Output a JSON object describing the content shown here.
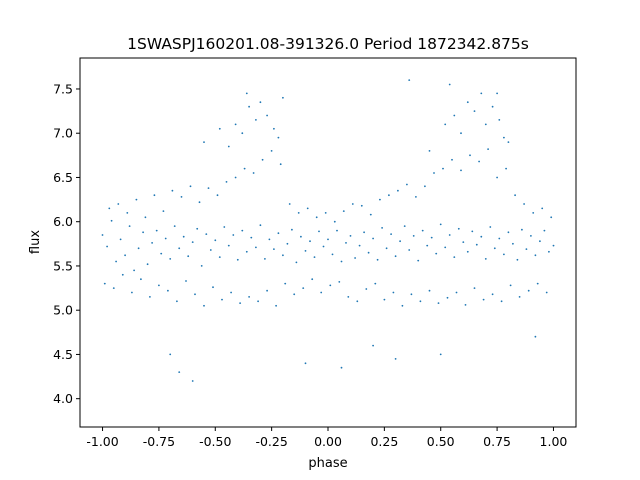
{
  "chart_data": {
    "type": "scatter",
    "title": "1SWASPJ160201.08-391326.0 Period 1872342.875s",
    "xlabel": "phase",
    "ylabel": "flux",
    "xlim": [
      -1.1,
      1.1
    ],
    "ylim": [
      3.68,
      7.85
    ],
    "grid": false,
    "legend": "none",
    "point_color": "#1f77b4",
    "xticks": [
      "-1.00",
      "-0.75",
      "-0.50",
      "-0.25",
      "0.00",
      "0.25",
      "0.50",
      "0.75",
      "1.00"
    ],
    "xtick_values": [
      -1.0,
      -0.75,
      -0.5,
      -0.25,
      0.0,
      0.25,
      0.5,
      0.75,
      1.0
    ],
    "yticks": [
      "4.0",
      "4.5",
      "5.0",
      "5.5",
      "6.0",
      "6.5",
      "7.0",
      "7.5"
    ],
    "ytick_values": [
      4.0,
      4.5,
      5.0,
      5.5,
      6.0,
      6.5,
      7.0,
      7.5
    ],
    "series": [
      {
        "x": [
          -1.0,
          -0.98,
          -0.96,
          -0.94,
          -0.92,
          -0.9,
          -0.88,
          -0.86,
          -0.84,
          -0.82,
          -0.8,
          -0.78,
          -0.76,
          -0.74,
          -0.72,
          -0.7,
          -0.68,
          -0.66,
          -0.64,
          -0.62,
          -0.6,
          -0.58,
          -0.56,
          -0.54,
          -0.52,
          -0.5,
          -0.48,
          -0.46,
          -0.44,
          -0.42,
          -0.4,
          -0.38,
          -0.36,
          -0.34,
          -0.32,
          -0.3,
          -0.28,
          -0.26,
          -0.24,
          -0.22,
          -0.2,
          -0.18,
          -0.16,
          -0.14,
          -0.12,
          -0.1,
          -0.08,
          -0.06,
          -0.04,
          -0.02,
          0.0,
          0.02,
          0.04,
          0.06,
          0.08,
          0.1,
          0.12,
          0.14,
          0.16,
          0.18,
          0.2,
          0.22,
          0.24,
          0.26,
          0.28,
          0.3,
          0.32,
          0.34,
          0.36,
          0.38,
          0.4,
          0.42,
          0.44,
          0.46,
          0.48,
          0.5,
          0.52,
          0.54,
          0.56,
          0.58,
          0.6,
          0.62,
          0.64,
          0.66,
          0.68,
          0.7,
          0.72,
          0.74,
          0.76,
          0.78,
          0.8,
          0.82,
          0.84,
          0.86,
          0.88,
          0.9,
          0.92,
          0.94,
          0.96,
          0.98,
          1.0,
          -0.99,
          -0.97,
          -0.95,
          -0.93,
          -0.91,
          -0.89,
          -0.87,
          -0.85,
          -0.83,
          -0.81,
          -0.79,
          -0.77,
          -0.75,
          -0.73,
          -0.71,
          -0.69,
          -0.67,
          -0.65,
          -0.63,
          -0.61,
          -0.59,
          -0.57,
          -0.55,
          -0.53,
          -0.51,
          -0.49,
          -0.47,
          -0.45,
          -0.43,
          -0.41,
          -0.39,
          -0.37,
          -0.35,
          -0.33,
          -0.31,
          -0.29,
          -0.27,
          -0.25,
          -0.23,
          -0.21,
          -0.19,
          -0.17,
          -0.15,
          -0.13,
          -0.11,
          -0.09,
          -0.07,
          -0.05,
          -0.03,
          -0.01,
          0.01,
          0.03,
          0.05,
          0.07,
          0.09,
          0.11,
          0.13,
          0.15,
          0.17,
          0.19,
          0.21,
          0.23,
          0.25,
          0.27,
          0.29,
          0.31,
          0.33,
          0.35,
          0.37,
          0.39,
          0.41,
          0.43,
          0.45,
          0.47,
          0.49,
          0.51,
          0.53,
          0.55,
          0.57,
          0.59,
          0.61,
          0.63,
          0.65,
          0.67,
          0.69,
          0.71,
          0.73,
          0.75,
          0.77,
          0.79,
          0.81,
          0.83,
          0.85,
          0.87,
          0.89,
          0.91,
          0.93,
          0.95,
          0.97,
          0.99,
          -0.55,
          -0.48,
          -0.44,
          -0.41,
          -0.38,
          -0.35,
          -0.32,
          -0.3,
          -0.27,
          -0.24,
          -0.22,
          -0.2,
          0.45,
          0.52,
          0.56,
          0.59,
          0.62,
          0.65,
          0.68,
          0.7,
          0.73,
          0.76,
          0.78,
          0.8,
          -0.7,
          -0.66,
          -0.6,
          -0.36,
          -0.1,
          0.06,
          0.2,
          0.3,
          0.36,
          0.5,
          0.54,
          0.75,
          0.92
        ],
        "y": [
          5.85,
          5.72,
          6.01,
          5.55,
          5.8,
          5.62,
          5.95,
          5.45,
          5.7,
          5.88,
          5.52,
          5.76,
          5.9,
          5.64,
          5.81,
          5.58,
          5.95,
          5.7,
          5.83,
          5.61,
          5.77,
          5.92,
          5.5,
          5.86,
          5.68,
          5.79,
          5.6,
          5.94,
          5.73,
          5.85,
          5.57,
          5.9,
          5.66,
          5.82,
          5.71,
          5.96,
          5.58,
          5.8,
          5.69,
          5.87,
          5.62,
          5.75,
          5.91,
          5.54,
          5.83,
          5.67,
          5.78,
          5.6,
          5.89,
          5.72,
          5.8,
          5.63,
          5.9,
          5.55,
          5.76,
          5.84,
          5.59,
          5.73,
          5.88,
          5.65,
          5.81,
          5.57,
          5.93,
          5.7,
          5.86,
          5.61,
          5.78,
          5.95,
          5.68,
          5.84,
          5.56,
          5.9,
          5.73,
          5.82,
          5.64,
          5.97,
          5.71,
          5.85,
          5.6,
          5.92,
          5.77,
          5.66,
          5.89,
          5.74,
          5.83,
          5.58,
          5.94,
          5.7,
          5.81,
          5.63,
          5.88,
          5.75,
          5.57,
          5.91,
          5.69,
          5.84,
          5.62,
          5.78,
          5.9,
          5.66,
          5.73,
          5.3,
          6.15,
          5.25,
          6.2,
          5.4,
          6.1,
          5.2,
          6.25,
          5.35,
          6.05,
          5.15,
          6.3,
          5.28,
          6.12,
          5.22,
          6.35,
          5.1,
          6.28,
          5.33,
          6.4,
          5.18,
          6.22,
          5.05,
          6.38,
          5.26,
          6.3,
          5.12,
          6.45,
          5.2,
          6.5,
          5.08,
          6.6,
          5.15,
          6.55,
          5.1,
          6.7,
          5.22,
          6.8,
          5.05,
          6.65,
          5.3,
          6.2,
          5.18,
          6.1,
          5.25,
          6.15,
          5.35,
          6.05,
          5.2,
          6.1,
          5.28,
          6.0,
          5.32,
          6.12,
          5.15,
          6.2,
          5.1,
          6.18,
          5.24,
          6.08,
          5.3,
          6.25,
          5.12,
          6.3,
          5.2,
          6.35,
          5.05,
          6.42,
          5.18,
          6.28,
          5.1,
          6.4,
          5.22,
          6.55,
          5.08,
          6.6,
          5.14,
          6.7,
          5.2,
          6.58,
          5.06,
          6.75,
          5.25,
          6.68,
          5.12,
          6.82,
          5.18,
          6.5,
          5.1,
          6.6,
          5.28,
          6.3,
          5.15,
          6.2,
          5.22,
          6.1,
          5.3,
          6.15,
          5.2,
          6.05,
          6.9,
          7.05,
          6.85,
          7.1,
          7.0,
          7.3,
          7.15,
          7.35,
          7.2,
          7.05,
          6.95,
          7.4,
          6.8,
          7.1,
          7.2,
          7.0,
          7.35,
          7.25,
          7.45,
          7.1,
          7.3,
          7.15,
          6.95,
          6.9,
          4.5,
          4.3,
          4.2,
          7.45,
          4.4,
          4.35,
          4.6,
          4.45,
          7.6,
          4.5,
          7.55,
          7.45,
          4.7
        ],
        "color": "#1f77b4"
      }
    ]
  }
}
